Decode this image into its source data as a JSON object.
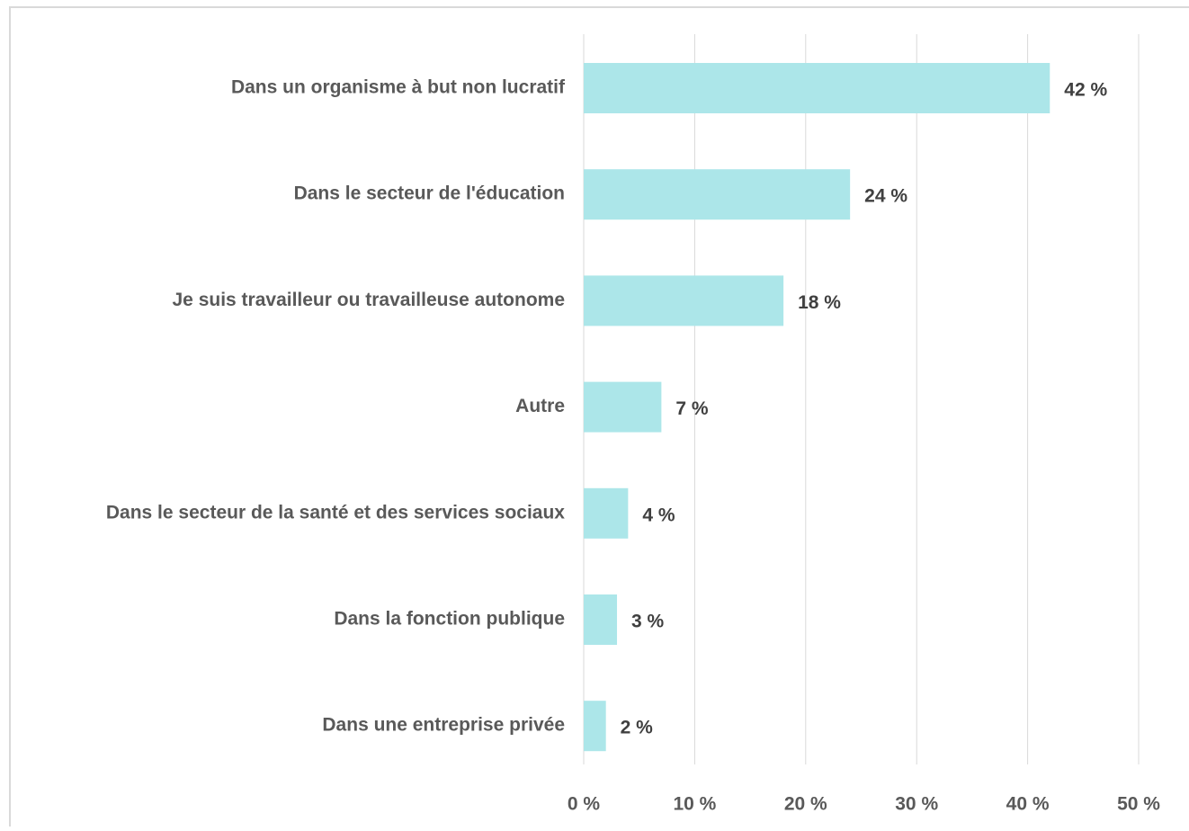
{
  "chart_data": {
    "type": "bar",
    "categories": [
      "Dans un organisme à but non lucratif",
      "Dans le secteur de l'éducation",
      "Je suis travailleur ou travailleuse autonome",
      "Autre",
      "Dans le secteur de la santé et des services sociaux",
      "Dans la fonction publique",
      "Dans une entreprise privée"
    ],
    "values": [
      42,
      24,
      18,
      7,
      4,
      3,
      2
    ],
    "value_labels": [
      "42 %",
      "24 %",
      "18 %",
      "7 %",
      "4 %",
      "3 %",
      "2 %"
    ],
    "color": "#ace6e9",
    "xlim": [
      0,
      50
    ],
    "xticks": [
      {
        "value": 0,
        "label": "0 %"
      },
      {
        "value": 10,
        "label": "10 %"
      },
      {
        "value": 20,
        "label": "20 %"
      },
      {
        "value": 30,
        "label": "30 %"
      },
      {
        "value": 40,
        "label": "40 %"
      },
      {
        "value": 50,
        "label": "50 %"
      }
    ],
    "grid": true
  }
}
